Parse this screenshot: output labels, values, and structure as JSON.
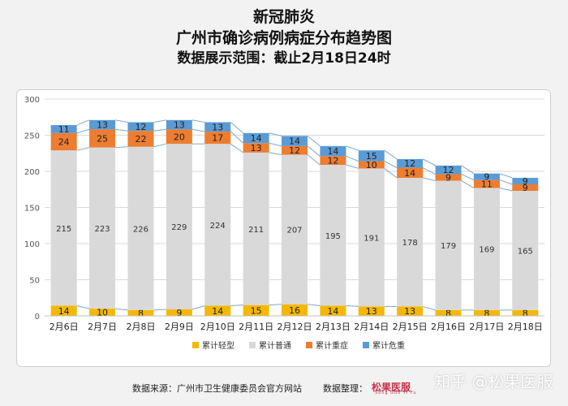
{
  "header": {
    "line1": "新冠肺炎",
    "line2": "广州市确诊病例病症分布趋势图",
    "line3": "数据展示范围：截止2月18日24时"
  },
  "footer": {
    "source": "数据来源：广州市卫生健康委员会官方网站",
    "organizer": "数据整理：",
    "logo_text": "松果医服",
    "logo_sub": "Song Guo Yi Fu",
    "watermark": "知乎 @松果医服"
  },
  "chart_data": {
    "type": "bar",
    "stacked": true,
    "categories": [
      "2月6日",
      "2月7日",
      "2月8日",
      "2月9日",
      "2月10日",
      "2月11日",
      "2月12日",
      "2月13日",
      "2月14日",
      "2月15日",
      "2月16日",
      "2月17日",
      "2月18日"
    ],
    "series": [
      {
        "name": "累计轻型",
        "color": "#f5b800",
        "values": [
          14,
          10,
          8,
          9,
          14,
          15,
          16,
          14,
          13,
          13,
          8,
          8,
          8
        ]
      },
      {
        "name": "累计普通",
        "color": "#d9d9d9",
        "values": [
          215,
          223,
          226,
          229,
          224,
          211,
          207,
          195,
          191,
          178,
          179,
          169,
          165
        ]
      },
      {
        "name": "累计重症",
        "color": "#ed7d31",
        "values": [
          24,
          25,
          22,
          20,
          17,
          13,
          12,
          12,
          10,
          14,
          9,
          11,
          9
        ]
      },
      {
        "name": "累计危重",
        "color": "#5b9bd5",
        "values": [
          11,
          13,
          12,
          13,
          13,
          14,
          14,
          14,
          15,
          12,
          12,
          9,
          9
        ]
      }
    ],
    "y_ticks": [
      0,
      50,
      100,
      150,
      200,
      250,
      300
    ],
    "ylim": [
      0,
      300
    ],
    "grid": true,
    "legend_position": "bottom",
    "connector_lines": true
  }
}
